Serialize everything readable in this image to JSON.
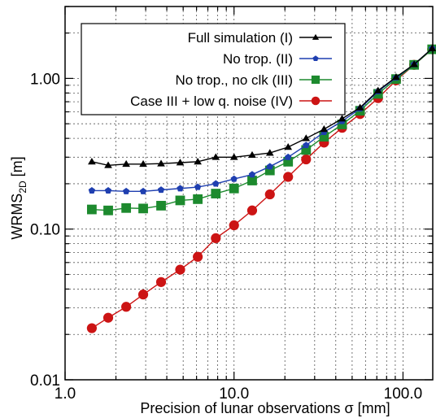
{
  "chart_data": {
    "type": "line",
    "xscale": "log",
    "yscale": "log",
    "xlim": [
      1.0,
      150.0
    ],
    "ylim": [
      0.01,
      3.0
    ],
    "xlabel": "Precision of lunar observations σ [mm]",
    "ylabel_main": "WRMS",
    "ylabel_sub": "2D",
    "ylabel_unit": " [m]",
    "x_ticks": [
      {
        "value": 1.0,
        "label": "1.0"
      },
      {
        "value": 10.0,
        "label": "10.0"
      },
      {
        "value": 100.0,
        "label": "100.0"
      }
    ],
    "y_ticks": [
      {
        "value": 0.01,
        "label": "0.01"
      },
      {
        "value": 0.1,
        "label": "0.10"
      },
      {
        "value": 1.0,
        "label": "1.00"
      }
    ],
    "grid": true,
    "legend_position": "top-right",
    "x": [
      1.44,
      1.8,
      2.3,
      2.9,
      3.7,
      4.8,
      6.1,
      7.8,
      10.0,
      12.8,
      16.3,
      20.9,
      26.7,
      34.1,
      43.6,
      55.7,
      71.2,
      91.0,
      116.4,
      148.8
    ],
    "series": [
      {
        "name": "Full simulation (I)",
        "color": "#000000",
        "marker": "triangle",
        "values": [
          0.28,
          0.265,
          0.27,
          0.27,
          0.272,
          0.276,
          0.28,
          0.3,
          0.3,
          0.31,
          0.32,
          0.35,
          0.4,
          0.46,
          0.54,
          0.64,
          0.83,
          1.02,
          1.24,
          1.58
        ]
      },
      {
        "name": "No trop. (II)",
        "color": "#1f3fb0",
        "marker": "pentagon",
        "values": [
          0.18,
          0.18,
          0.178,
          0.178,
          0.182,
          0.186,
          0.19,
          0.2,
          0.215,
          0.23,
          0.26,
          0.3,
          0.36,
          0.44,
          0.52,
          0.63,
          0.82,
          1.01,
          1.24,
          1.58
        ]
      },
      {
        "name": "No trop., no clk (III)",
        "color": "#1d8a2e",
        "marker": "square",
        "values": [
          0.135,
          0.133,
          0.138,
          0.137,
          0.143,
          0.155,
          0.158,
          0.172,
          0.186,
          0.21,
          0.245,
          0.28,
          0.335,
          0.41,
          0.495,
          0.61,
          0.79,
          0.99,
          1.23,
          1.56
        ]
      },
      {
        "name": "Case III + low q. noise (IV)",
        "color": "#cc1414",
        "marker": "circle",
        "values": [
          0.022,
          0.0258,
          0.0305,
          0.0368,
          0.0445,
          0.0538,
          0.0655,
          0.087,
          0.106,
          0.133,
          0.17,
          0.222,
          0.29,
          0.375,
          0.47,
          0.58,
          0.74,
          0.97,
          1.23,
          1.56
        ]
      }
    ]
  }
}
